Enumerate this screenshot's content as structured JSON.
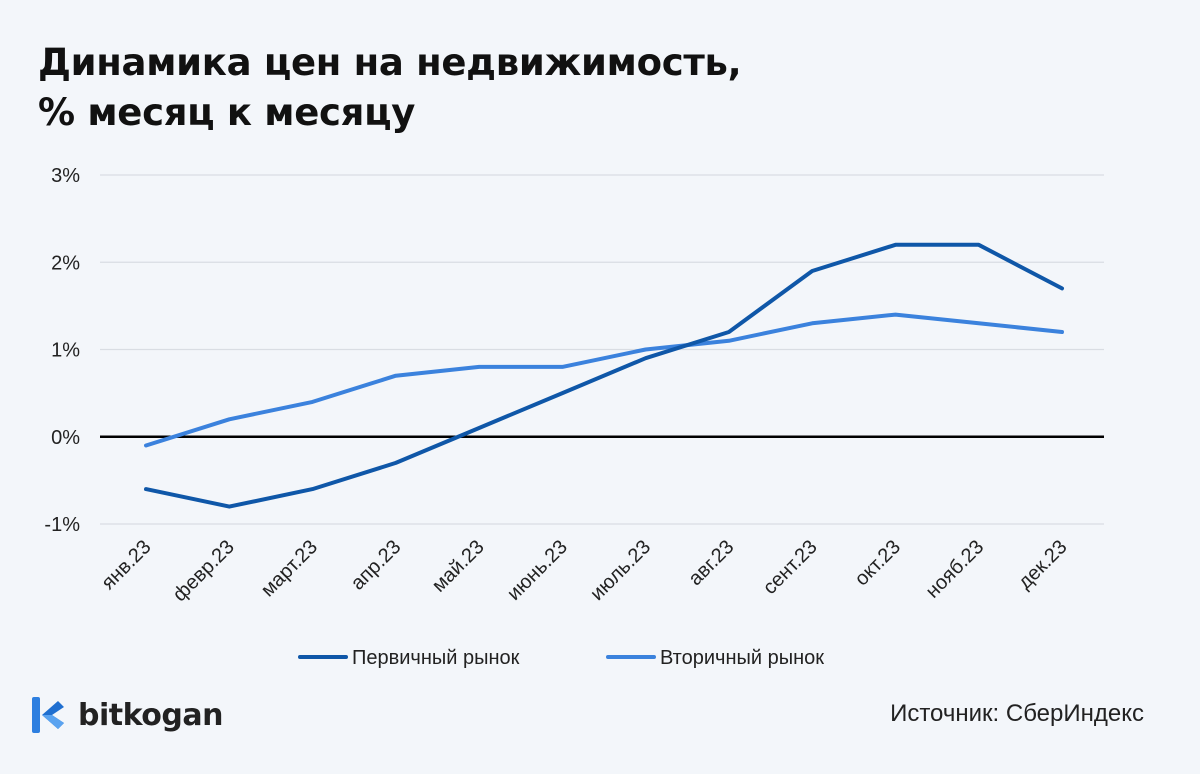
{
  "title_line1": "Динамика цен на недвижимость,",
  "title_line2": "% месяц к месяцу",
  "brand": {
    "name": "bitkogan",
    "logo_icon": "bitkogan-logo-icon"
  },
  "source": "Источник: СберИндекс",
  "colors": {
    "primary_series": "#0f57a8",
    "secondary_series": "#3b82dd",
    "zero_line": "#000000",
    "grid": "#d9dde3",
    "background": "#f3f6fa"
  },
  "chart_data": {
    "type": "line",
    "title": "Динамика цен на недвижимость, % месяц к месяцу",
    "categories": [
      "янв.23",
      "февр.23",
      "март.23",
      "апр.23",
      "май.23",
      "июнь.23",
      "июль.23",
      "авг.23",
      "сент.23",
      "окт.23",
      "нояб.23",
      "дек.23"
    ],
    "series": [
      {
        "name": "Первичный рынок",
        "values": [
          -0.6,
          -0.8,
          -0.6,
          -0.3,
          0.1,
          0.5,
          0.9,
          1.2,
          1.9,
          2.2,
          2.2,
          1.7
        ]
      },
      {
        "name": "Вторичный рынок",
        "values": [
          -0.1,
          0.2,
          0.4,
          0.7,
          0.8,
          0.8,
          1.0,
          1.1,
          1.3,
          1.4,
          1.3,
          1.2
        ]
      }
    ],
    "y_ticks": [
      -1,
      0,
      1,
      2,
      3
    ],
    "y_tick_labels": [
      "-1%",
      "0%",
      "1%",
      "2%",
      "3%"
    ],
    "ylim": [
      -1,
      3
    ],
    "grid": true,
    "legend_position": "bottom-center"
  }
}
